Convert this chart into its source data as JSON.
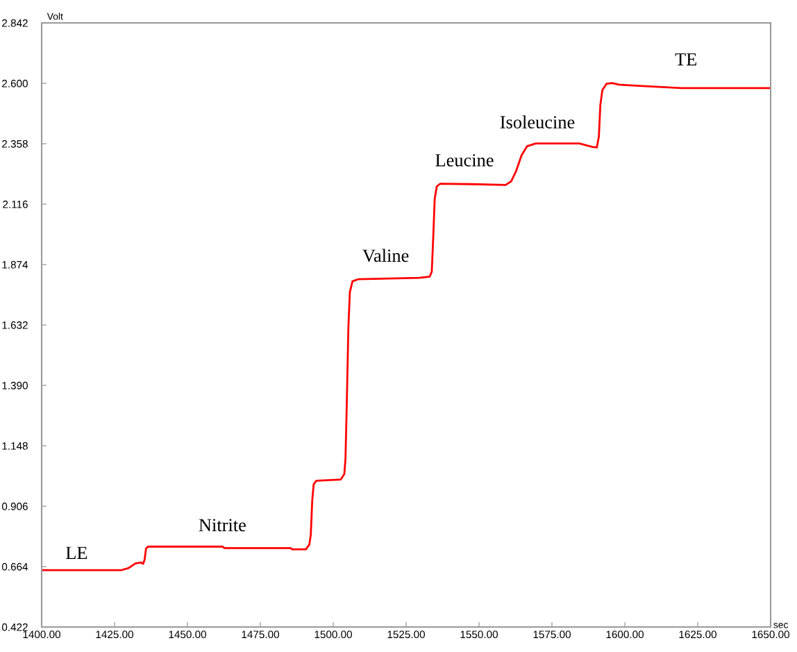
{
  "chart_data": {
    "type": "line",
    "xlabel": "sec",
    "ylabel": "Volt",
    "x": [
      1400,
      1427.4,
      1429.8,
      1432.2,
      1434.1,
      1434.8,
      1435.3,
      1435.8,
      1436.5,
      1462.0,
      1462.7,
      1485.4,
      1485.9,
      1490.6,
      1491.8,
      1492.3,
      1492.8,
      1493.3,
      1494.2,
      1502.6,
      1503.8,
      1504.2,
      1504.7,
      1505.2,
      1505.7,
      1506.6,
      1508.5,
      1529.5,
      1533.1,
      1533.8,
      1534.3,
      1534.8,
      1535.5,
      1536.7,
      1547.9,
      1559.1,
      1561.0,
      1562.7,
      1564.6,
      1566.5,
      1569.4,
      1584.4,
      1588.9,
      1590.4,
      1591.1,
      1591.6,
      1592.3,
      1593.7,
      1595.6,
      1598.0,
      1601.6,
      1619.5,
      1650
    ],
    "series": [
      {
        "color": "#ff0000",
        "values": [
          0.65,
          0.65,
          0.658,
          0.677,
          0.68,
          0.675,
          0.691,
          0.736,
          0.744,
          0.744,
          0.738,
          0.738,
          0.733,
          0.733,
          0.752,
          0.791,
          0.93,
          0.994,
          1.008,
          1.013,
          1.035,
          1.096,
          1.346,
          1.624,
          1.763,
          1.807,
          1.815,
          1.821,
          1.826,
          1.846,
          1.985,
          2.137,
          2.187,
          2.198,
          2.196,
          2.193,
          2.207,
          2.248,
          2.312,
          2.348,
          2.359,
          2.359,
          2.345,
          2.343,
          2.387,
          2.512,
          2.573,
          2.598,
          2.601,
          2.595,
          2.592,
          2.581,
          2.581
        ]
      }
    ],
    "xlim": [
      1400,
      1650
    ],
    "xticks": [
      {
        "value": 1400,
        "label": "1400.00"
      },
      {
        "value": 1425,
        "label": "1425.00"
      },
      {
        "value": 1450,
        "label": "1450.00"
      },
      {
        "value": 1475,
        "label": "1475.00"
      },
      {
        "value": 1500,
        "label": "1500.00"
      },
      {
        "value": 1525,
        "label": "1525.00"
      },
      {
        "value": 1550,
        "label": "1550.00"
      },
      {
        "value": 1575,
        "label": "1575.00"
      },
      {
        "value": 1600,
        "label": "1600.00"
      },
      {
        "value": 1625,
        "label": "1625.00"
      },
      {
        "value": 1650,
        "label": "1650.00"
      }
    ],
    "ylim": [
      0.422,
      2.842
    ],
    "yticks": [
      0.422,
      0.664,
      0.906,
      1.148,
      {
        "value": 1.39,
        "label": "1.390"
      },
      1.632,
      1.874,
      2.116,
      2.358,
      {
        "value": 2.6,
        "label": "2.600"
      },
      2.842
    ],
    "annotations": [
      "LE",
      "Nitrite",
      "Valine",
      "Leucine",
      "Isoleucine",
      "TE"
    ],
    "grid": false,
    "legend": false,
    "line_style": "solid",
    "marker": "none"
  }
}
